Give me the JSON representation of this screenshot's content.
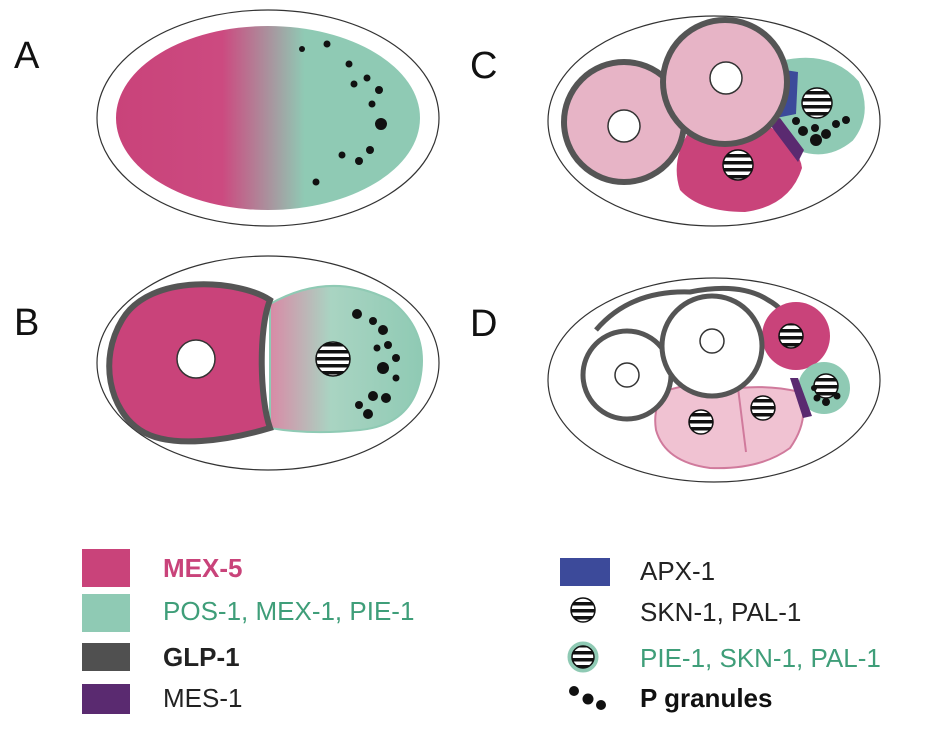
{
  "panels": {
    "a": {
      "label": "A"
    },
    "b": {
      "label": "B"
    },
    "c": {
      "label": "C"
    },
    "d": {
      "label": "D"
    }
  },
  "legend": {
    "mex5": {
      "text": "MEX-5",
      "color": "#c9437a"
    },
    "pos1": {
      "text": "POS-1, MEX-1, PIE-1",
      "color": "#8fcab4"
    },
    "glp1": {
      "text": "GLP-1",
      "color": "#505050"
    },
    "mes1": {
      "text": "MES-1",
      "color": "#5a2a70"
    },
    "apx1": {
      "text": "APX-1",
      "color": "#3c4a9a"
    },
    "skn1": {
      "text": "SKN-1, PAL-1"
    },
    "pie1": {
      "text": "PIE-1, SKN-1, PAL-1",
      "color": "#3f9e79"
    },
    "pgran": {
      "text": "P granules"
    }
  },
  "colors": {
    "light_pink": "#e7b4c6",
    "pale_pink": "#f0c2d2",
    "outline": "#555555",
    "granule": "#111111"
  }
}
